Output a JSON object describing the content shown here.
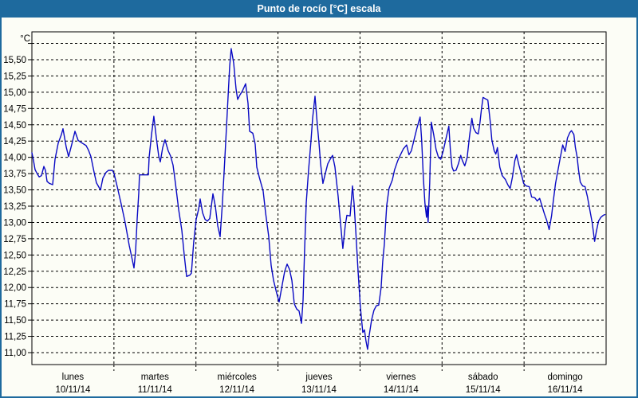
{
  "window": {
    "title": "Punto de rocío [°C] escala"
  },
  "colors": {
    "titlebar": "#1e6a9e",
    "window_border": "#1e6a9e",
    "background": "#fcfdf6",
    "plot_border": "#000000",
    "grid": "#000000",
    "text": "#000000",
    "title_text": "#ffffff",
    "line": "#0a0ac4"
  },
  "chart_data": {
    "type": "line",
    "title": "Punto de rocío [°C] escala",
    "y_unit": "°C",
    "xlabel": "",
    "ylabel": "°C",
    "grid": true,
    "legend": "none",
    "y_axis": {
      "labeled_min": 11.0,
      "labeled_max": 15.5,
      "step": 0.25,
      "unlabeled_top_gridline": 15.75,
      "decimal_separator": ","
    },
    "ylim": [
      10.82,
      15.93
    ],
    "xlim_days": [
      0,
      7
    ],
    "y_ticks": [
      {
        "value": 15.75,
        "label": ""
      },
      {
        "value": 15.5,
        "label": "15,50"
      },
      {
        "value": 15.25,
        "label": "15,25"
      },
      {
        "value": 15.0,
        "label": "15,00"
      },
      {
        "value": 14.75,
        "label": "14,75"
      },
      {
        "value": 14.5,
        "label": "14,50"
      },
      {
        "value": 14.25,
        "label": "14,25"
      },
      {
        "value": 14.0,
        "label": "14,00"
      },
      {
        "value": 13.75,
        "label": "13,75"
      },
      {
        "value": 13.5,
        "label": "13,50"
      },
      {
        "value": 13.25,
        "label": "13,25"
      },
      {
        "value": 13.0,
        "label": "13,00"
      },
      {
        "value": 12.75,
        "label": "12,75"
      },
      {
        "value": 12.5,
        "label": "12,50"
      },
      {
        "value": 12.25,
        "label": "12,25"
      },
      {
        "value": 12.0,
        "label": "12,00"
      },
      {
        "value": 11.75,
        "label": "11,75"
      },
      {
        "value": 11.5,
        "label": "11,50"
      },
      {
        "value": 11.25,
        "label": "11,25"
      },
      {
        "value": 11.0,
        "label": "11,00"
      }
    ],
    "days": [
      {
        "name": "lunes",
        "date": "10/11/14"
      },
      {
        "name": "martes",
        "date": "11/11/14"
      },
      {
        "name": "miércoles",
        "date": "12/11/14"
      },
      {
        "name": "jueves",
        "date": "13/11/14"
      },
      {
        "name": "viernes",
        "date": "14/11/14"
      },
      {
        "name": "sábado",
        "date": "15/11/14"
      },
      {
        "name": "domingo",
        "date": "16/11/14"
      }
    ],
    "series": [
      {
        "name": "Punto de rocío [°C]",
        "color": "#0a0ac4",
        "x_unit": "days_since_2014-11-10",
        "points": [
          [
            0.0,
            14.07
          ],
          [
            0.019,
            13.95
          ],
          [
            0.039,
            13.81
          ],
          [
            0.068,
            13.74
          ],
          [
            0.088,
            13.7
          ],
          [
            0.117,
            13.72
          ],
          [
            0.146,
            13.86
          ],
          [
            0.165,
            13.8
          ],
          [
            0.185,
            13.63
          ],
          [
            0.214,
            13.6
          ],
          [
            0.253,
            13.58
          ],
          [
            0.282,
            13.97
          ],
          [
            0.321,
            14.22
          ],
          [
            0.36,
            14.35
          ],
          [
            0.379,
            14.44
          ],
          [
            0.418,
            14.16
          ],
          [
            0.447,
            14.01
          ],
          [
            0.486,
            14.2
          ],
          [
            0.525,
            14.4
          ],
          [
            0.564,
            14.26
          ],
          [
            0.612,
            14.22
          ],
          [
            0.661,
            14.18
          ],
          [
            0.69,
            14.11
          ],
          [
            0.719,
            14.01
          ],
          [
            0.758,
            13.77
          ],
          [
            0.787,
            13.61
          ],
          [
            0.836,
            13.5
          ],
          [
            0.865,
            13.68
          ],
          [
            0.904,
            13.77
          ],
          [
            0.933,
            13.8
          ],
          [
            0.982,
            13.8
          ],
          [
            1.001,
            13.75
          ],
          [
            1.04,
            13.55
          ],
          [
            1.089,
            13.28
          ],
          [
            1.137,
            13.0
          ],
          [
            1.186,
            12.65
          ],
          [
            1.225,
            12.42
          ],
          [
            1.244,
            12.3
          ],
          [
            1.264,
            12.55
          ],
          [
            1.283,
            13.05
          ],
          [
            1.303,
            13.45
          ],
          [
            1.312,
            13.73
          ],
          [
            1.419,
            13.73
          ],
          [
            1.429,
            14.0
          ],
          [
            1.458,
            14.35
          ],
          [
            1.487,
            14.63
          ],
          [
            1.517,
            14.3
          ],
          [
            1.546,
            14.02
          ],
          [
            1.565,
            13.93
          ],
          [
            1.594,
            14.15
          ],
          [
            1.623,
            14.27
          ],
          [
            1.662,
            14.1
          ],
          [
            1.691,
            14.02
          ],
          [
            1.721,
            13.88
          ],
          [
            1.75,
            13.6
          ],
          [
            1.789,
            13.2
          ],
          [
            1.828,
            12.88
          ],
          [
            1.857,
            12.5
          ],
          [
            1.886,
            12.17
          ],
          [
            1.925,
            12.19
          ],
          [
            1.944,
            12.22
          ],
          [
            1.973,
            12.7
          ],
          [
            2.003,
            13.05
          ],
          [
            2.032,
            13.2
          ],
          [
            2.051,
            13.36
          ],
          [
            2.081,
            13.15
          ],
          [
            2.11,
            13.05
          ],
          [
            2.139,
            13.02
          ],
          [
            2.168,
            13.06
          ],
          [
            2.207,
            13.44
          ],
          [
            2.236,
            13.25
          ],
          [
            2.265,
            12.95
          ],
          [
            2.294,
            12.78
          ],
          [
            2.323,
            13.3
          ],
          [
            2.353,
            14.0
          ],
          [
            2.382,
            14.7
          ],
          [
            2.411,
            15.4
          ],
          [
            2.43,
            15.67
          ],
          [
            2.46,
            15.45
          ],
          [
            2.489,
            15.05
          ],
          [
            2.508,
            14.89
          ],
          [
            2.537,
            14.96
          ],
          [
            2.567,
            15.02
          ],
          [
            2.606,
            15.13
          ],
          [
            2.635,
            14.83
          ],
          [
            2.654,
            14.4
          ],
          [
            2.693,
            14.37
          ],
          [
            2.722,
            14.2
          ],
          [
            2.742,
            13.85
          ],
          [
            2.771,
            13.7
          ],
          [
            2.819,
            13.48
          ],
          [
            2.849,
            13.15
          ],
          [
            2.887,
            12.79
          ],
          [
            2.917,
            12.34
          ],
          [
            2.946,
            12.11
          ],
          [
            2.985,
            11.91
          ],
          [
            3.014,
            11.78
          ],
          [
            3.053,
            12.05
          ],
          [
            3.082,
            12.25
          ],
          [
            3.111,
            12.36
          ],
          [
            3.14,
            12.28
          ],
          [
            3.169,
            12.11
          ],
          [
            3.199,
            11.75
          ],
          [
            3.228,
            11.67
          ],
          [
            3.257,
            11.64
          ],
          [
            3.276,
            11.52
          ],
          [
            3.286,
            11.45
          ],
          [
            3.306,
            11.8
          ],
          [
            3.325,
            12.6
          ],
          [
            3.344,
            13.3
          ],
          [
            3.373,
            13.8
          ],
          [
            3.403,
            14.26
          ],
          [
            3.422,
            14.6
          ],
          [
            3.451,
            14.94
          ],
          [
            3.48,
            14.5
          ],
          [
            3.5,
            14.22
          ],
          [
            3.519,
            13.9
          ],
          [
            3.548,
            13.6
          ],
          [
            3.577,
            13.75
          ],
          [
            3.607,
            13.9
          ],
          [
            3.636,
            13.97
          ],
          [
            3.665,
            14.03
          ],
          [
            3.694,
            13.85
          ],
          [
            3.733,
            13.4
          ],
          [
            3.762,
            13.0
          ],
          [
            3.791,
            12.6
          ],
          [
            3.82,
            12.95
          ],
          [
            3.84,
            13.11
          ],
          [
            3.879,
            13.1
          ],
          [
            3.908,
            13.56
          ],
          [
            3.927,
            13.3
          ],
          [
            3.947,
            12.89
          ],
          [
            3.976,
            12.25
          ],
          [
            4.005,
            11.7
          ],
          [
            4.034,
            11.31
          ],
          [
            4.054,
            11.35
          ],
          [
            4.073,
            11.18
          ],
          [
            4.092,
            11.05
          ],
          [
            4.112,
            11.26
          ],
          [
            4.141,
            11.5
          ],
          [
            4.17,
            11.65
          ],
          [
            4.199,
            11.72
          ],
          [
            4.228,
            11.73
          ],
          [
            4.257,
            12.0
          ],
          [
            4.277,
            12.4
          ],
          [
            4.296,
            12.66
          ],
          [
            4.325,
            13.26
          ],
          [
            4.354,
            13.52
          ],
          [
            4.393,
            13.65
          ],
          [
            4.422,
            13.81
          ],
          [
            4.461,
            13.95
          ],
          [
            4.49,
            14.03
          ],
          [
            4.529,
            14.13
          ],
          [
            4.568,
            14.19
          ],
          [
            4.597,
            14.04
          ],
          [
            4.626,
            14.1
          ],
          [
            4.665,
            14.3
          ],
          [
            4.694,
            14.45
          ],
          [
            4.733,
            14.62
          ],
          [
            4.752,
            14.25
          ],
          [
            4.772,
            13.7
          ],
          [
            4.791,
            13.3
          ],
          [
            4.811,
            13.08
          ],
          [
            4.82,
            13.25
          ],
          [
            4.83,
            13.0
          ],
          [
            4.849,
            13.6
          ],
          [
            4.869,
            14.54
          ],
          [
            4.898,
            14.35
          ],
          [
            4.927,
            14.12
          ],
          [
            4.956,
            14.0
          ],
          [
            4.985,
            13.97
          ],
          [
            5.015,
            14.1
          ],
          [
            5.054,
            14.32
          ],
          [
            5.083,
            14.48
          ],
          [
            5.102,
            14.1
          ],
          [
            5.122,
            13.85
          ],
          [
            5.141,
            13.79
          ],
          [
            5.17,
            13.8
          ],
          [
            5.199,
            13.9
          ],
          [
            5.228,
            14.03
          ],
          [
            5.248,
            13.95
          ],
          [
            5.277,
            13.87
          ],
          [
            5.306,
            14.0
          ],
          [
            5.335,
            14.32
          ],
          [
            5.364,
            14.6
          ],
          [
            5.384,
            14.45
          ],
          [
            5.413,
            14.38
          ],
          [
            5.442,
            14.36
          ],
          [
            5.461,
            14.52
          ],
          [
            5.481,
            14.75
          ],
          [
            5.5,
            14.92
          ],
          [
            5.529,
            14.9
          ],
          [
            5.558,
            14.88
          ],
          [
            5.587,
            14.55
          ],
          [
            5.607,
            14.27
          ],
          [
            5.636,
            14.1
          ],
          [
            5.655,
            14.05
          ],
          [
            5.675,
            14.15
          ],
          [
            5.704,
            13.85
          ],
          [
            5.733,
            13.72
          ],
          [
            5.772,
            13.66
          ],
          [
            5.801,
            13.58
          ],
          [
            5.83,
            13.52
          ],
          [
            5.859,
            13.7
          ],
          [
            5.888,
            13.95
          ],
          [
            5.908,
            14.04
          ],
          [
            5.937,
            13.88
          ],
          [
            5.966,
            13.75
          ],
          [
            5.995,
            13.6
          ],
          [
            6.024,
            13.56
          ],
          [
            6.063,
            13.55
          ],
          [
            6.092,
            13.39
          ],
          [
            6.131,
            13.38
          ],
          [
            6.16,
            13.33
          ],
          [
            6.19,
            13.37
          ],
          [
            6.219,
            13.25
          ],
          [
            6.248,
            13.13
          ],
          [
            6.277,
            13.03
          ],
          [
            6.306,
            12.89
          ],
          [
            6.335,
            13.1
          ],
          [
            6.355,
            13.32
          ],
          [
            6.384,
            13.6
          ],
          [
            6.413,
            13.8
          ],
          [
            6.442,
            14.0
          ],
          [
            6.471,
            14.19
          ],
          [
            6.5,
            14.09
          ],
          [
            6.529,
            14.3
          ],
          [
            6.558,
            14.38
          ],
          [
            6.578,
            14.41
          ],
          [
            6.607,
            14.35
          ],
          [
            6.626,
            14.15
          ],
          [
            6.646,
            14.01
          ],
          [
            6.665,
            13.8
          ],
          [
            6.685,
            13.62
          ],
          [
            6.714,
            13.56
          ],
          [
            6.743,
            13.55
          ],
          [
            6.772,
            13.4
          ],
          [
            6.801,
            13.2
          ],
          [
            6.83,
            13.0
          ],
          [
            6.86,
            12.71
          ],
          [
            6.879,
            12.85
          ],
          [
            6.908,
            13.02
          ],
          [
            6.937,
            13.08
          ],
          [
            6.966,
            13.11
          ],
          [
            6.986,
            13.12
          ]
        ]
      }
    ]
  }
}
